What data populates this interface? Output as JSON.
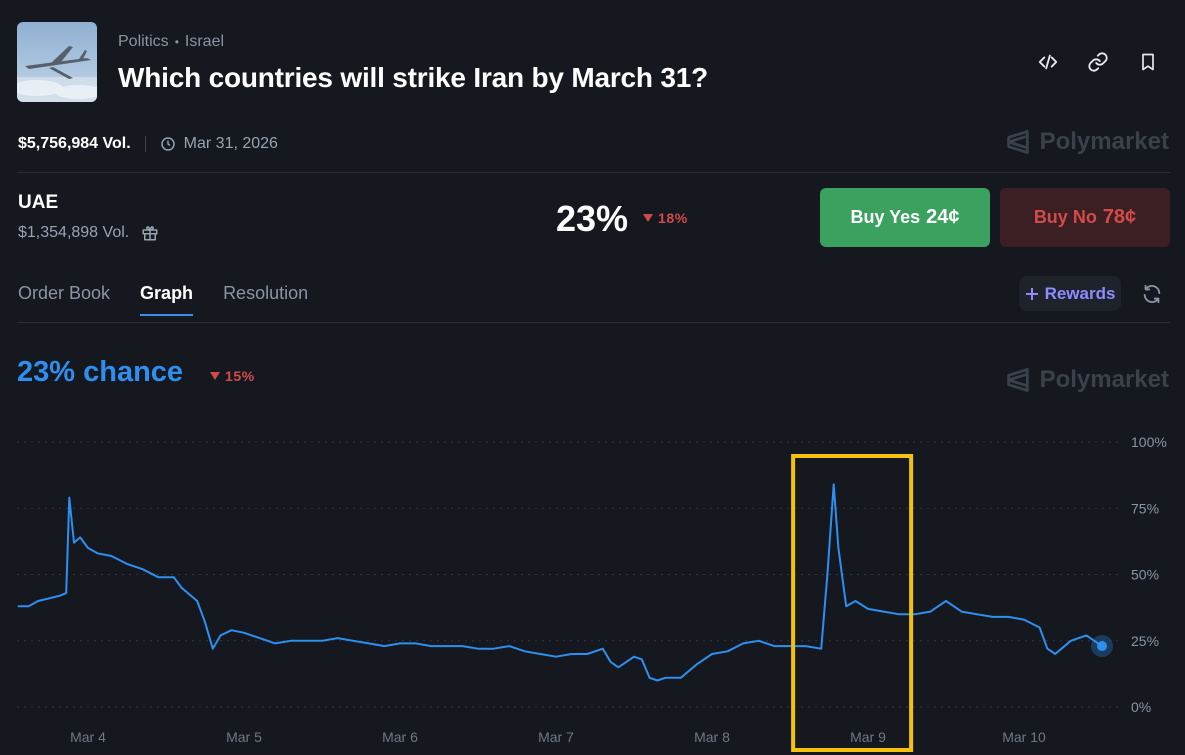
{
  "market": {
    "category": "Politics",
    "subcategory": "Israel",
    "title": "Which countries will strike Iran by March 31?",
    "volume": "$5,756,984 Vol.",
    "end_date": "Mar 31, 2026",
    "brand": "Polymarket"
  },
  "header_icons": [
    "embed-code-icon",
    "link-icon",
    "bookmark-icon"
  ],
  "outcome": {
    "name": "UAE",
    "volume": "$1,354,898 Vol.",
    "probability": "23%",
    "change": "18%",
    "buy_yes_label": "Buy Yes",
    "buy_yes_price": "24¢",
    "buy_no_label": "Buy No",
    "buy_no_price": "78¢"
  },
  "tabs": [
    "Order Book",
    "Graph",
    "Resolution"
  ],
  "active_tab": "Graph",
  "rewards_label": "Rewards",
  "graph": {
    "chance_text": "23% chance",
    "change": "15%"
  },
  "colors": {
    "background": "#15191f",
    "accent_blue": "#2e8ff0",
    "yes_green": "#3aa25e",
    "no_red": "#d24b4b",
    "highlight": "#f4c20d"
  },
  "chart_data": {
    "type": "line",
    "x_tick_labels": [
      "Mar 4",
      "Mar 5",
      "Mar 6",
      "Mar 7",
      "Mar 8",
      "Mar 9",
      "Mar 10"
    ],
    "y_tick_labels": [
      "100%",
      "75%",
      "50%",
      "25%",
      "0%"
    ],
    "ylim": [
      0,
      100
    ],
    "grid": true,
    "series": [
      {
        "values": [
          [
            3.55,
            38
          ],
          [
            3.62,
            38
          ],
          [
            3.68,
            40
          ],
          [
            3.75,
            41
          ],
          [
            3.82,
            42
          ],
          [
            3.86,
            43
          ],
          [
            3.88,
            79
          ],
          [
            3.91,
            62
          ],
          [
            3.95,
            64
          ],
          [
            4.0,
            60
          ],
          [
            4.06,
            58
          ],
          [
            4.15,
            57
          ],
          [
            4.25,
            54
          ],
          [
            4.35,
            52
          ],
          [
            4.45,
            49
          ],
          [
            4.55,
            49
          ],
          [
            4.6,
            45
          ],
          [
            4.7,
            40
          ],
          [
            4.75,
            32
          ],
          [
            4.8,
            22
          ],
          [
            4.85,
            27
          ],
          [
            4.92,
            29
          ],
          [
            5.0,
            28
          ],
          [
            5.1,
            26
          ],
          [
            5.2,
            24
          ],
          [
            5.3,
            25
          ],
          [
            5.4,
            25
          ],
          [
            5.5,
            25
          ],
          [
            5.6,
            26
          ],
          [
            5.7,
            25
          ],
          [
            5.8,
            24
          ],
          [
            5.9,
            23
          ],
          [
            6.0,
            24
          ],
          [
            6.1,
            24
          ],
          [
            6.2,
            23
          ],
          [
            6.3,
            23
          ],
          [
            6.4,
            23
          ],
          [
            6.5,
            22
          ],
          [
            6.6,
            22
          ],
          [
            6.7,
            23
          ],
          [
            6.75,
            22
          ],
          [
            6.8,
            21
          ],
          [
            6.9,
            20
          ],
          [
            7.0,
            19
          ],
          [
            7.1,
            20
          ],
          [
            7.2,
            20
          ],
          [
            7.3,
            22
          ],
          [
            7.35,
            17
          ],
          [
            7.4,
            15
          ],
          [
            7.5,
            19
          ],
          [
            7.55,
            18
          ],
          [
            7.6,
            11
          ],
          [
            7.65,
            10
          ],
          [
            7.7,
            11
          ],
          [
            7.8,
            11
          ],
          [
            7.9,
            16
          ],
          [
            8.0,
            20
          ],
          [
            8.1,
            21
          ],
          [
            8.2,
            24
          ],
          [
            8.3,
            25
          ],
          [
            8.4,
            23
          ],
          [
            8.5,
            23
          ],
          [
            8.6,
            23
          ],
          [
            8.7,
            22
          ],
          [
            8.74,
            50
          ],
          [
            8.78,
            84
          ],
          [
            8.81,
            60
          ],
          [
            8.86,
            38
          ],
          [
            8.92,
            40
          ],
          [
            9.0,
            37
          ],
          [
            9.1,
            36
          ],
          [
            9.2,
            35
          ],
          [
            9.3,
            35
          ],
          [
            9.4,
            36
          ],
          [
            9.5,
            40
          ],
          [
            9.6,
            36
          ],
          [
            9.7,
            35
          ],
          [
            9.8,
            34
          ],
          [
            9.9,
            34
          ],
          [
            10.0,
            33
          ],
          [
            10.1,
            30
          ],
          [
            10.15,
            22
          ],
          [
            10.2,
            20
          ],
          [
            10.3,
            25
          ],
          [
            10.4,
            27
          ],
          [
            10.45,
            25
          ],
          [
            10.5,
            23
          ]
        ]
      }
    ],
    "annotation": "highlight box around the Mar 9 spike"
  }
}
